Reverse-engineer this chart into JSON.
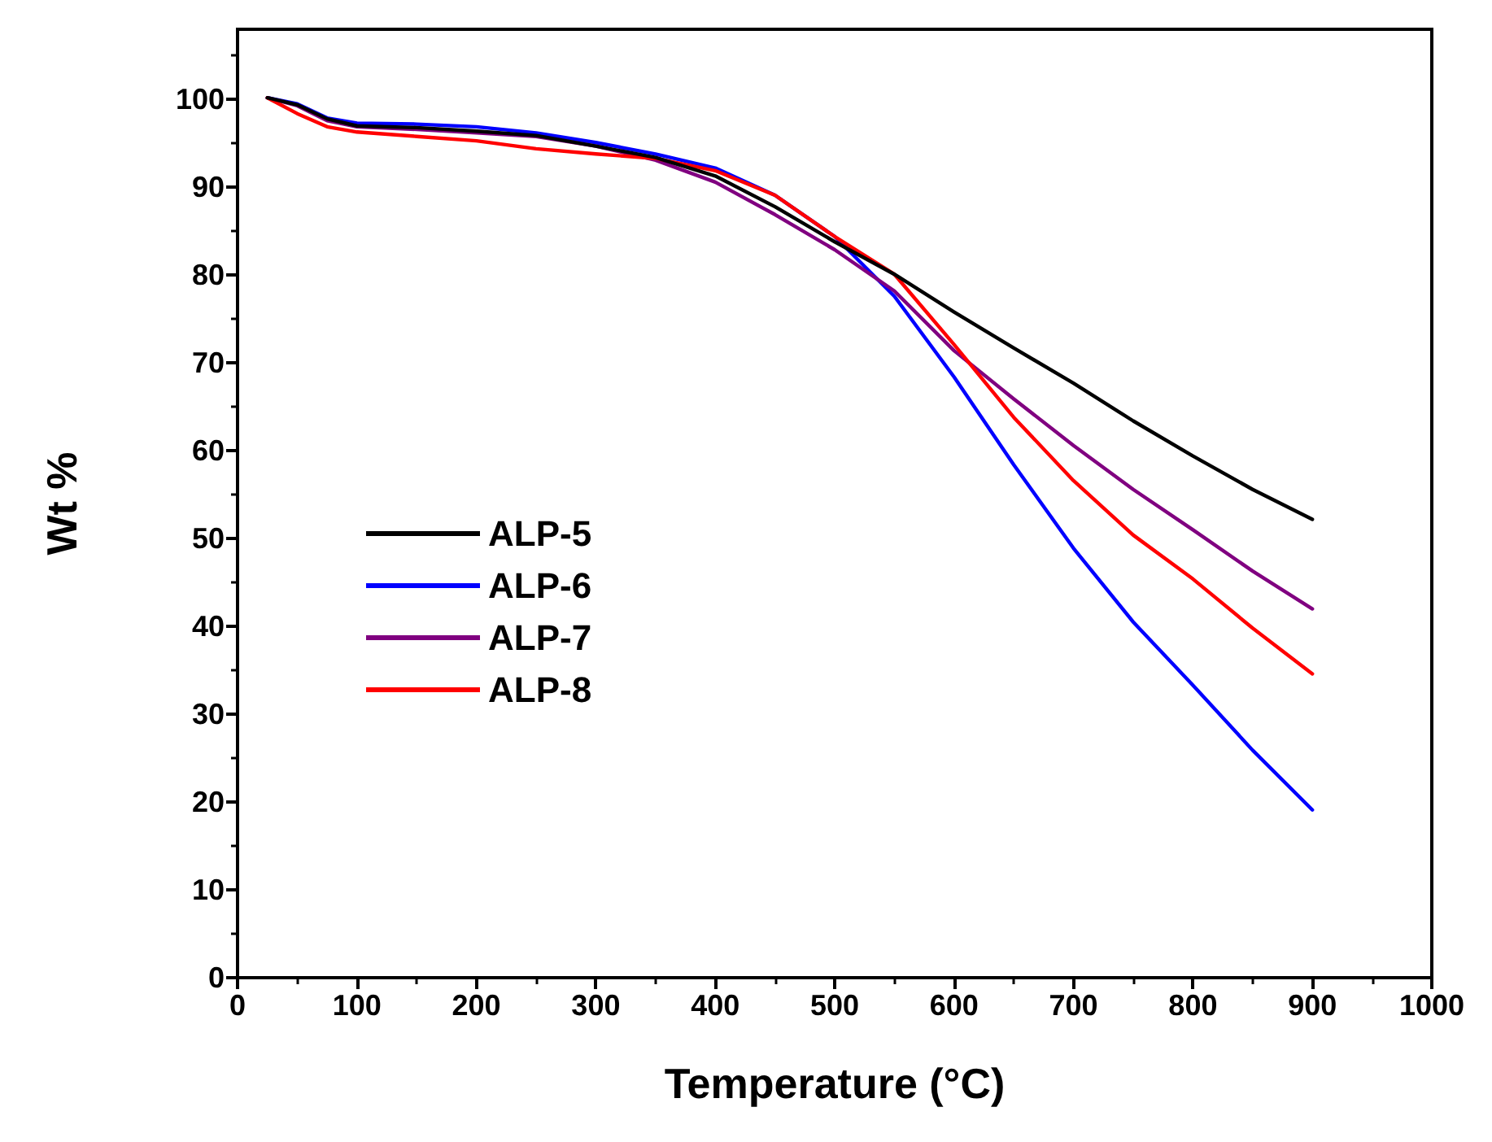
{
  "chart_data": {
    "type": "line",
    "xlabel": "Temperature (°C)",
    "ylabel": "Wt %",
    "x": [
      25,
      50,
      75,
      100,
      150,
      200,
      250,
      300,
      350,
      400,
      450,
      500,
      550,
      600,
      650,
      700,
      750,
      800,
      850,
      900
    ],
    "xlim": [
      0,
      1000
    ],
    "xticks": [
      0,
      100,
      200,
      300,
      400,
      500,
      600,
      700,
      800,
      900,
      1000
    ],
    "ylim": [
      0,
      108
    ],
    "yticks": [
      0,
      10,
      20,
      30,
      40,
      50,
      60,
      70,
      80,
      90,
      100
    ],
    "grid": false,
    "legend": "left",
    "marker": "none",
    "line_style": "solid",
    "series": [
      {
        "name": "ALP-5",
        "color": "#000000",
        "values": [
          100.2,
          99.4,
          97.8,
          97.0,
          96.8,
          96.4,
          95.9,
          94.7,
          93.4,
          91.3,
          87.8,
          83.8,
          80.1,
          75.8,
          71.7,
          67.7,
          63.4,
          59.4,
          55.6,
          52.2
        ]
      },
      {
        "name": "ALP-6",
        "color": "#0000ff",
        "values": [
          100.2,
          99.5,
          97.9,
          97.3,
          97.2,
          96.9,
          96.2,
          95.1,
          93.8,
          92.2,
          89.1,
          84.4,
          77.6,
          68.4,
          58.4,
          48.9,
          40.5,
          33.3,
          25.9,
          19.1
        ]
      },
      {
        "name": "ALP-7",
        "color": "#800080",
        "values": [
          100.2,
          99.3,
          97.6,
          96.9,
          96.6,
          96.2,
          95.8,
          94.7,
          93.1,
          90.6,
          86.9,
          82.9,
          78.2,
          71.4,
          65.9,
          60.6,
          55.6,
          51.0,
          46.3,
          42.0
        ]
      },
      {
        "name": "ALP-8",
        "color": "#ff0000",
        "values": [
          100.2,
          98.4,
          96.9,
          96.3,
          95.8,
          95.3,
          94.4,
          93.8,
          93.3,
          91.9,
          89.1,
          84.4,
          80.1,
          72.1,
          63.8,
          56.6,
          50.4,
          45.4,
          39.8,
          34.6
        ]
      }
    ]
  }
}
